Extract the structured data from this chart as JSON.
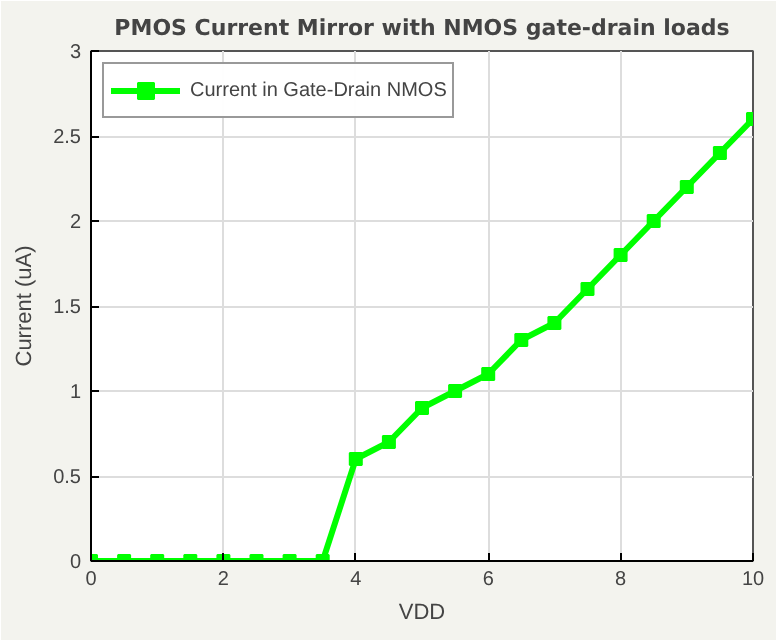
{
  "chart_data": {
    "type": "line",
    "title": "PMOS Current Mirror with NMOS gate-drain loads",
    "xlabel": "VDD",
    "ylabel": "Current (uA)",
    "x": [
      0,
      0.5,
      1,
      1.5,
      2,
      2.5,
      3,
      3.5,
      4,
      4.5,
      5,
      5.5,
      6,
      6.5,
      7,
      7.5,
      8,
      8.5,
      9,
      9.5,
      10
    ],
    "series": [
      {
        "name": "Current in Gate-Drain NMOS",
        "color": "#00ff00",
        "values": [
          0,
          0,
          0,
          0,
          0,
          0,
          0,
          0,
          0.6,
          0.7,
          0.9,
          1.0,
          1.1,
          1.3,
          1.4,
          1.6,
          1.8,
          2.0,
          2.2,
          2.4,
          2.6
        ]
      }
    ],
    "xlim": [
      0,
      10
    ],
    "ylim": [
      0,
      3
    ],
    "xticks": [
      0,
      2,
      4,
      6,
      8,
      10
    ],
    "yticks": [
      0,
      0.5,
      1,
      1.5,
      2,
      2.5,
      3
    ],
    "grid": true,
    "legend": "top left",
    "marker": "square",
    "line_style": "solid"
  }
}
